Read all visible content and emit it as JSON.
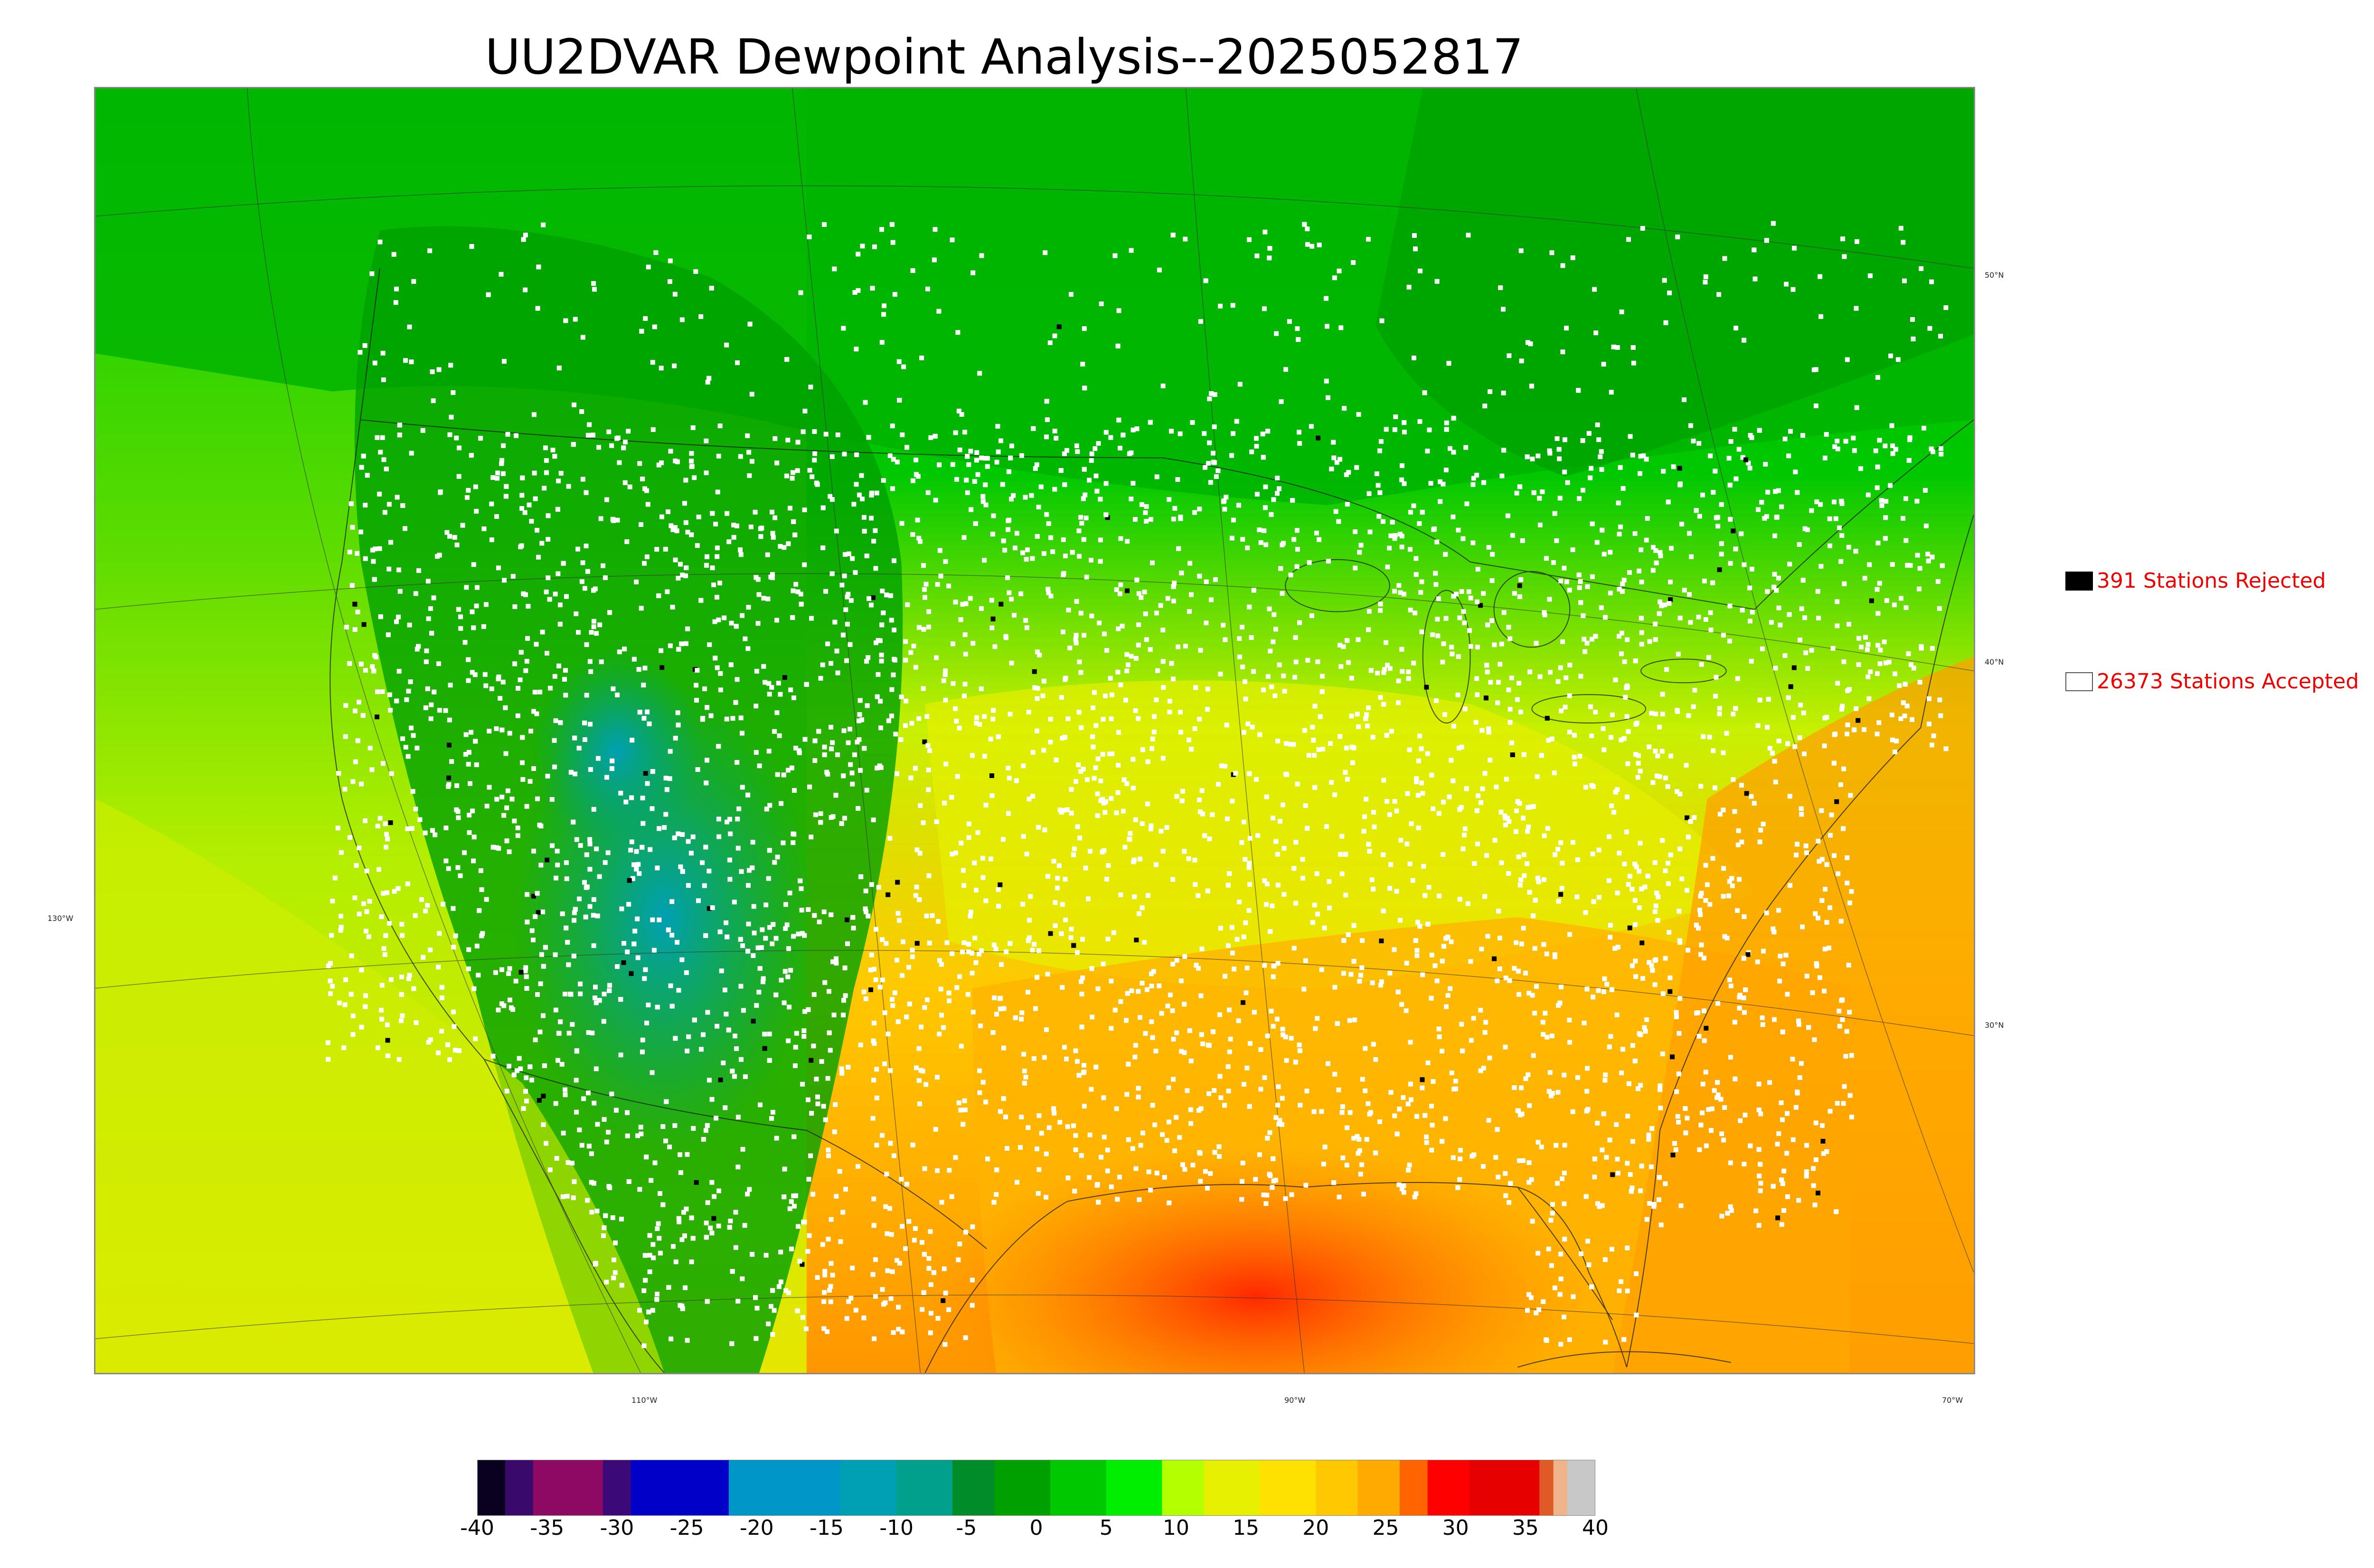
{
  "title": "UU2DVAR Dewpoint Analysis--2025052817",
  "legend": {
    "rejected": {
      "label": "391 Stations Rejected",
      "swatch_color": "#000000"
    },
    "accepted": {
      "label": "26373 Stations Accepted",
      "swatch_color": "#ffffff"
    }
  },
  "graticule": {
    "lat_labels": [
      "50°N",
      "40°N",
      "30°N"
    ],
    "lon_labels": [
      "130°W",
      "110°W",
      "90°W",
      "70°W"
    ]
  },
  "colorbar": {
    "ticks": [
      "-40",
      "-35",
      "-30",
      "-25",
      "-20",
      "-15",
      "-10",
      "-5",
      "0",
      "5",
      "10",
      "15",
      "20",
      "25",
      "30",
      "35",
      "40"
    ],
    "min": -40,
    "max": 40,
    "bins": [
      {
        "from": -40,
        "to": -38,
        "color": "#0a0020"
      },
      {
        "from": -38,
        "to": -36,
        "color": "#3a0a6a"
      },
      {
        "from": -36,
        "to": -31,
        "color": "#8c0a64"
      },
      {
        "from": -31,
        "to": -29,
        "color": "#3c0a78"
      },
      {
        "from": -29,
        "to": -22,
        "color": "#0000c8"
      },
      {
        "from": -22,
        "to": -14,
        "color": "#0096c8"
      },
      {
        "from": -14,
        "to": -10,
        "color": "#00a0b4"
      },
      {
        "from": -10,
        "to": -6,
        "color": "#00a08c"
      },
      {
        "from": -6,
        "to": -3,
        "color": "#008c28"
      },
      {
        "from": -3,
        "to": 1,
        "color": "#00a000"
      },
      {
        "from": 1,
        "to": 5,
        "color": "#00c800"
      },
      {
        "from": 5,
        "to": 9,
        "color": "#00ee00"
      },
      {
        "from": 9,
        "to": 12,
        "color": "#b4ff00"
      },
      {
        "from": 12,
        "to": 16,
        "color": "#e6f000"
      },
      {
        "from": 16,
        "to": 20,
        "color": "#ffe100"
      },
      {
        "from": 20,
        "to": 23,
        "color": "#ffc800"
      },
      {
        "from": 23,
        "to": 26,
        "color": "#ffaa00"
      },
      {
        "from": 26,
        "to": 28,
        "color": "#ff6400"
      },
      {
        "from": 28,
        "to": 31,
        "color": "#ff0000"
      },
      {
        "from": 31,
        "to": 36,
        "color": "#e60000"
      },
      {
        "from": 36,
        "to": 37,
        "color": "#e05a28"
      },
      {
        "from": 37,
        "to": 38,
        "color": "#f0b48c"
      },
      {
        "from": 38,
        "to": 40,
        "color": "#c8c8c8"
      }
    ]
  },
  "field_colors": {
    "ocean_pacific": "#c8ee00",
    "ocean_atlantic": "#ffaa00",
    "gulf": "#ff3c00",
    "canada": "#00b400",
    "mountain_west": "#00a000",
    "southwest_dry": "#00a0a0",
    "plains": "#e6f000",
    "southeast": "#ffb400"
  }
}
